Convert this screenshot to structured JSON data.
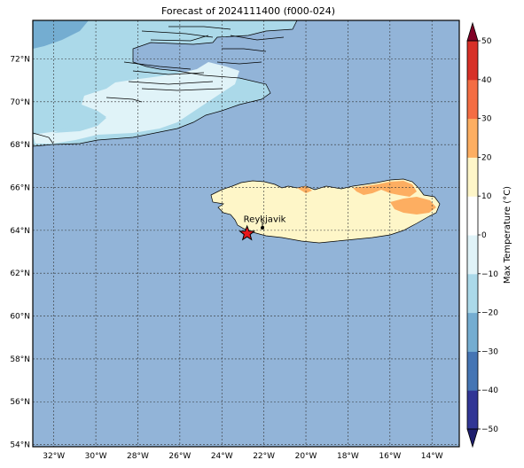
{
  "title": "Forecast of 2024111400 (f000-024)",
  "map": {
    "lon_range": [
      -33,
      -12.7
    ],
    "lat_range": [
      53.9,
      73.8
    ],
    "lon_ticks": [
      -32,
      -30,
      -28,
      -26,
      -24,
      -22,
      -20,
      -18,
      -16,
      -14
    ],
    "lon_tick_labels": [
      "32°W",
      "30°W",
      "28°W",
      "26°W",
      "24°W",
      "22°W",
      "20°W",
      "18°W",
      "16°W",
      "14°W"
    ],
    "lat_ticks": [
      54,
      56,
      58,
      60,
      62,
      64,
      66,
      68,
      70,
      72
    ],
    "lat_tick_labels": [
      "54°N",
      "56°N",
      "58°N",
      "60°N",
      "62°N",
      "64°N",
      "66°N",
      "68°N",
      "70°N",
      "72°N"
    ],
    "gridlines": true,
    "ocean_fill_color": "#92b4d8",
    "marker": {
      "name": "Reykjavik",
      "label": "Reykjavik",
      "lon": -22.8,
      "lat": 63.85,
      "symbol": "red-star",
      "color": "#e8161b"
    }
  },
  "colorbar": {
    "label": "Max Temperature (°C)",
    "ticks": [
      -50,
      -40,
      -30,
      -20,
      -10,
      0,
      10,
      20,
      30,
      40,
      50
    ],
    "tick_labels": [
      "−50",
      "−40",
      "−30",
      "−20",
      "−10",
      "0",
      "10",
      "20",
      "30",
      "40",
      "50"
    ],
    "levels": [
      -50,
      -45,
      -40,
      -35,
      -30,
      -25,
      -20,
      -15,
      -10,
      -5,
      0,
      5,
      10,
      15,
      20,
      25,
      30,
      35,
      40,
      45,
      50
    ],
    "colors": [
      "#313695",
      "#313695",
      "#4575b4",
      "#4575b4",
      "#74add1",
      "#74add1",
      "#abd9e9",
      "#abd9e9",
      "#e0f3f8",
      "#e0f3f8",
      "#ffffff",
      "#ffffff",
      "#fef6c8",
      "#fef6c8",
      "#fdae61",
      "#fdae61",
      "#f46d43",
      "#f46d43",
      "#d73027",
      "#d73027",
      "#a50026"
    ],
    "min_extend_color": "#1e1e6e",
    "max_extend_color": "#800026"
  }
}
